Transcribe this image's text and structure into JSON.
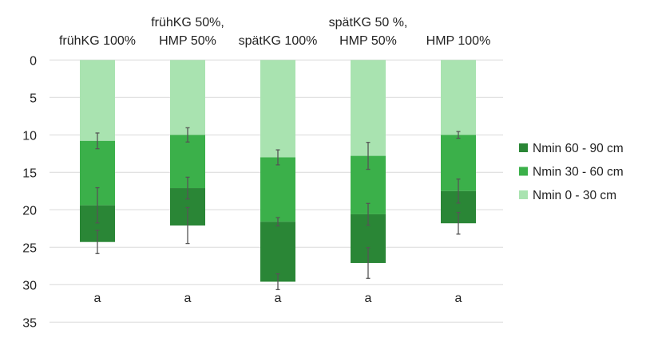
{
  "chart_data": {
    "type": "bar",
    "stacked": true,
    "y_inverted": true,
    "categories": [
      [
        "frühKG 100%"
      ],
      [
        "frühKG 50%,",
        "HMP 50%"
      ],
      [
        "spätKG 100%"
      ],
      [
        "spätKG 50 %,",
        "HMP 50%"
      ],
      [
        "HMP 100%"
      ]
    ],
    "ylim": [
      0,
      35
    ],
    "yticks": [
      0,
      5,
      10,
      15,
      20,
      25,
      30,
      35
    ],
    "grid": true,
    "legend_position": "right",
    "series": [
      {
        "name": "Nmin 0 - 30 cm",
        "color": "#a9e3b0",
        "values": [
          10.8,
          10.0,
          13.0,
          12.8,
          10.0
        ],
        "errors": [
          1.05,
          0.95,
          1.0,
          1.8,
          0.45
        ]
      },
      {
        "name": "Nmin 30 - 60 cm",
        "color": "#3bb04a",
        "values": [
          8.6,
          7.1,
          8.6,
          7.8,
          7.5
        ],
        "errors": [
          2.35,
          1.45,
          0.55,
          1.45,
          1.6
        ]
      },
      {
        "name": "Nmin 60 - 90 cm",
        "color": "#2a8636",
        "values": [
          4.9,
          5.0,
          8.0,
          6.5,
          4.3
        ],
        "errors": [
          1.55,
          2.4,
          1.05,
          2.05,
          1.45
        ]
      }
    ],
    "legend_order": [
      2,
      1,
      0
    ],
    "annotations": [
      "a",
      "a",
      "a",
      "a",
      "a"
    ]
  }
}
